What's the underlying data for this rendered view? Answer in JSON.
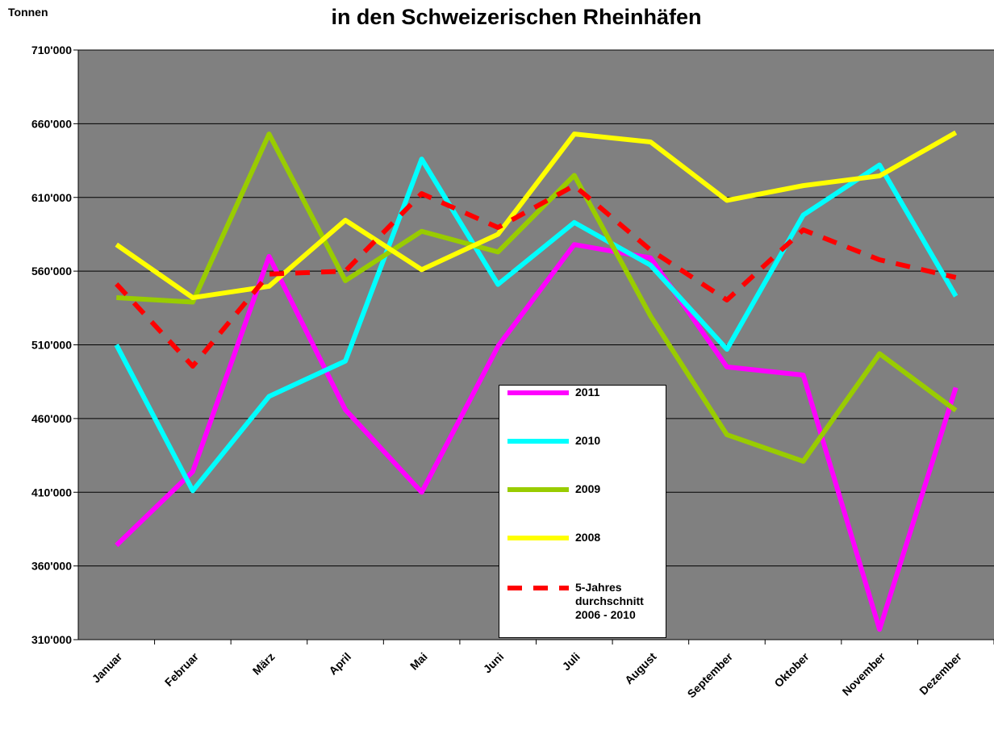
{
  "chart_data": {
    "type": "line",
    "title": "in den Schweizerischen Rheinhäfen",
    "y_label": "Tonnen",
    "categories": [
      "Januar",
      "Februar",
      "März",
      "April",
      "Mai",
      "Juni",
      "Juli",
      "August",
      "September",
      "Oktober",
      "November",
      "Dezember"
    ],
    "series": [
      {
        "name": "2011",
        "color": "#ff00ff",
        "values": [
          374000,
          424000,
          570000,
          466000,
          410000,
          509000,
          578000,
          569000,
          495000,
          489500,
          317000,
          481000
        ]
      },
      {
        "name": "2010",
        "color": "#00ffff",
        "values": [
          510000,
          411000,
          475000,
          499000,
          636000,
          551000,
          593000,
          564000,
          507000,
          598000,
          632000,
          543000
        ]
      },
      {
        "name": "2009",
        "color": "#99cc00",
        "values": [
          542000,
          539000,
          653000,
          553500,
          587000,
          573000,
          625000,
          529500,
          449000,
          431000,
          504000,
          465500
        ]
      },
      {
        "name": "2008",
        "color": "#ffff00",
        "values": [
          578000,
          542000,
          549700,
          594500,
          561000,
          585000,
          653000,
          647600,
          608000,
          618000,
          624600,
          654000
        ]
      },
      {
        "name": "5-Jahres durchschnitt 2006 - 2010",
        "color": "#ff0000",
        "dashed": true,
        "values": [
          551300,
          495500,
          558000,
          560000,
          612600,
          589600,
          618000,
          574300,
          540400,
          588000,
          567700,
          555700
        ]
      }
    ],
    "ylim": [
      310000,
      710000
    ],
    "yticks": [
      {
        "value": 310000,
        "label": "310'000"
      },
      {
        "value": 360000,
        "label": "360'000"
      },
      {
        "value": 410000,
        "label": "410'000"
      },
      {
        "value": 460000,
        "label": "460'000"
      },
      {
        "value": 510000,
        "label": "510'000"
      },
      {
        "value": 560000,
        "label": "560'000"
      },
      {
        "value": 610000,
        "label": "610'000"
      },
      {
        "value": 660000,
        "label": "660'000"
      },
      {
        "value": 710000,
        "label": "710'000"
      }
    ],
    "grid": true,
    "plot_background": "#808080"
  }
}
